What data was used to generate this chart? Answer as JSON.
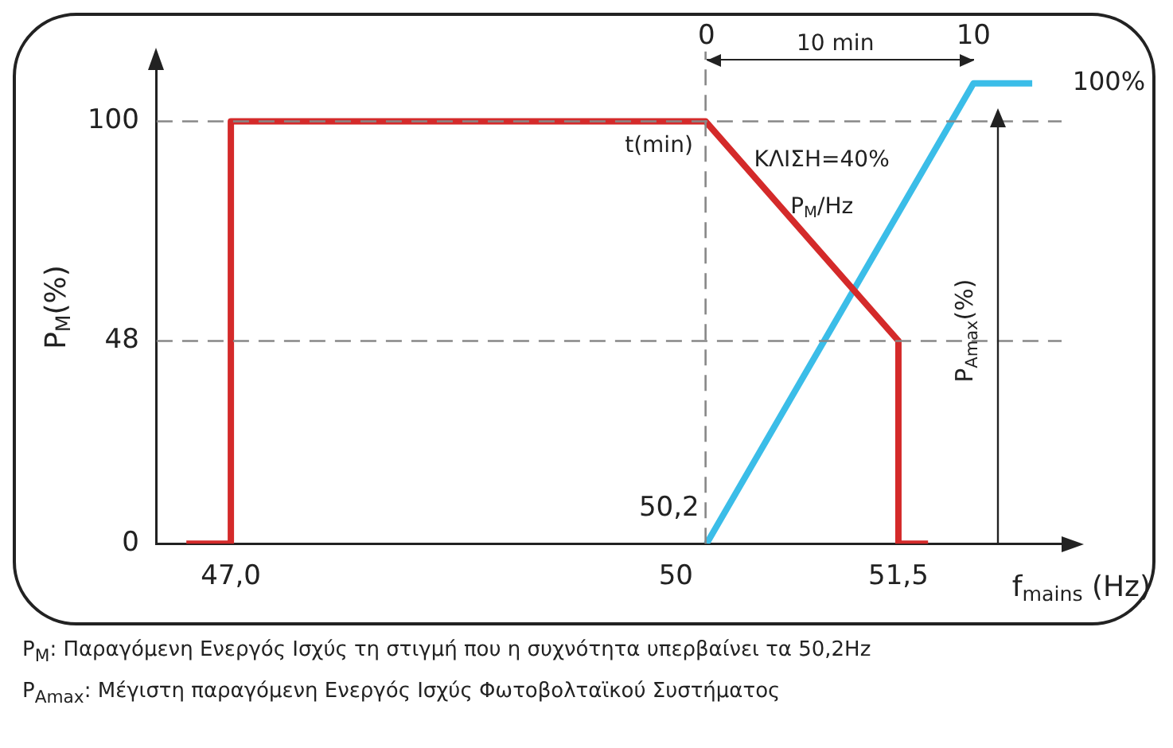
{
  "chart_data": {
    "type": "line",
    "xlabel": "f$_{mains}$ (Hz)",
    "ylabel": "P$_{M}$(%)",
    "xlim": [
      46.5,
      52.6
    ],
    "xticks": [
      {
        "value": 47,
        "label": "47,0"
      },
      50,
      {
        "value": 51.5,
        "label": "51,5"
      }
    ],
    "x2lim": [
      -20.6,
      13.3
    ],
    "x2ticks": [
      0,
      10
    ],
    "ylim": [
      0,
      112
    ],
    "yticks": [
      0,
      48,
      100
    ],
    "series": [
      {
        "color": "#d42a2a",
        "x": [
          46.7,
          47.0,
          47.0,
          50.2,
          51.5,
          51.5,
          51.7
        ],
        "values": [
          0,
          0,
          100,
          100,
          48,
          0,
          0
        ]
      },
      {
        "color": "#3bbde8",
        "axis": "x2",
        "x": [
          0,
          10,
          12.2
        ],
        "values": [
          0,
          109,
          109
        ]
      }
    ],
    "ref_lines": [
      {
        "axis": "x",
        "value": 50.2,
        "label": "50,2",
        "line_style": "dashed"
      },
      {
        "axis": "y",
        "value": 100,
        "line_style": "dashed"
      },
      {
        "axis": "y",
        "value": 48,
        "line_style": "dashed"
      }
    ],
    "annotations": [
      "t(min)",
      "ΚΛΙΣΗ=40%",
      "P$_{M}$/Hz",
      "10 min",
      "100%",
      "P$_{Amax}$(%)",
      "P$_{M}$: Παραγόμενη Ενεργός Ισχύς τη στιγμή που η συχνότητα υπερβαίνει τα 50,2Hz",
      "P$_{Amax}$: Μέγιστη παραγόμενη Ενεργός Ισχύς Φωτοβολταϊκού Συστήματος"
    ],
    "grid": false,
    "legend": false,
    "marker": "none",
    "line_style": "solid"
  }
}
